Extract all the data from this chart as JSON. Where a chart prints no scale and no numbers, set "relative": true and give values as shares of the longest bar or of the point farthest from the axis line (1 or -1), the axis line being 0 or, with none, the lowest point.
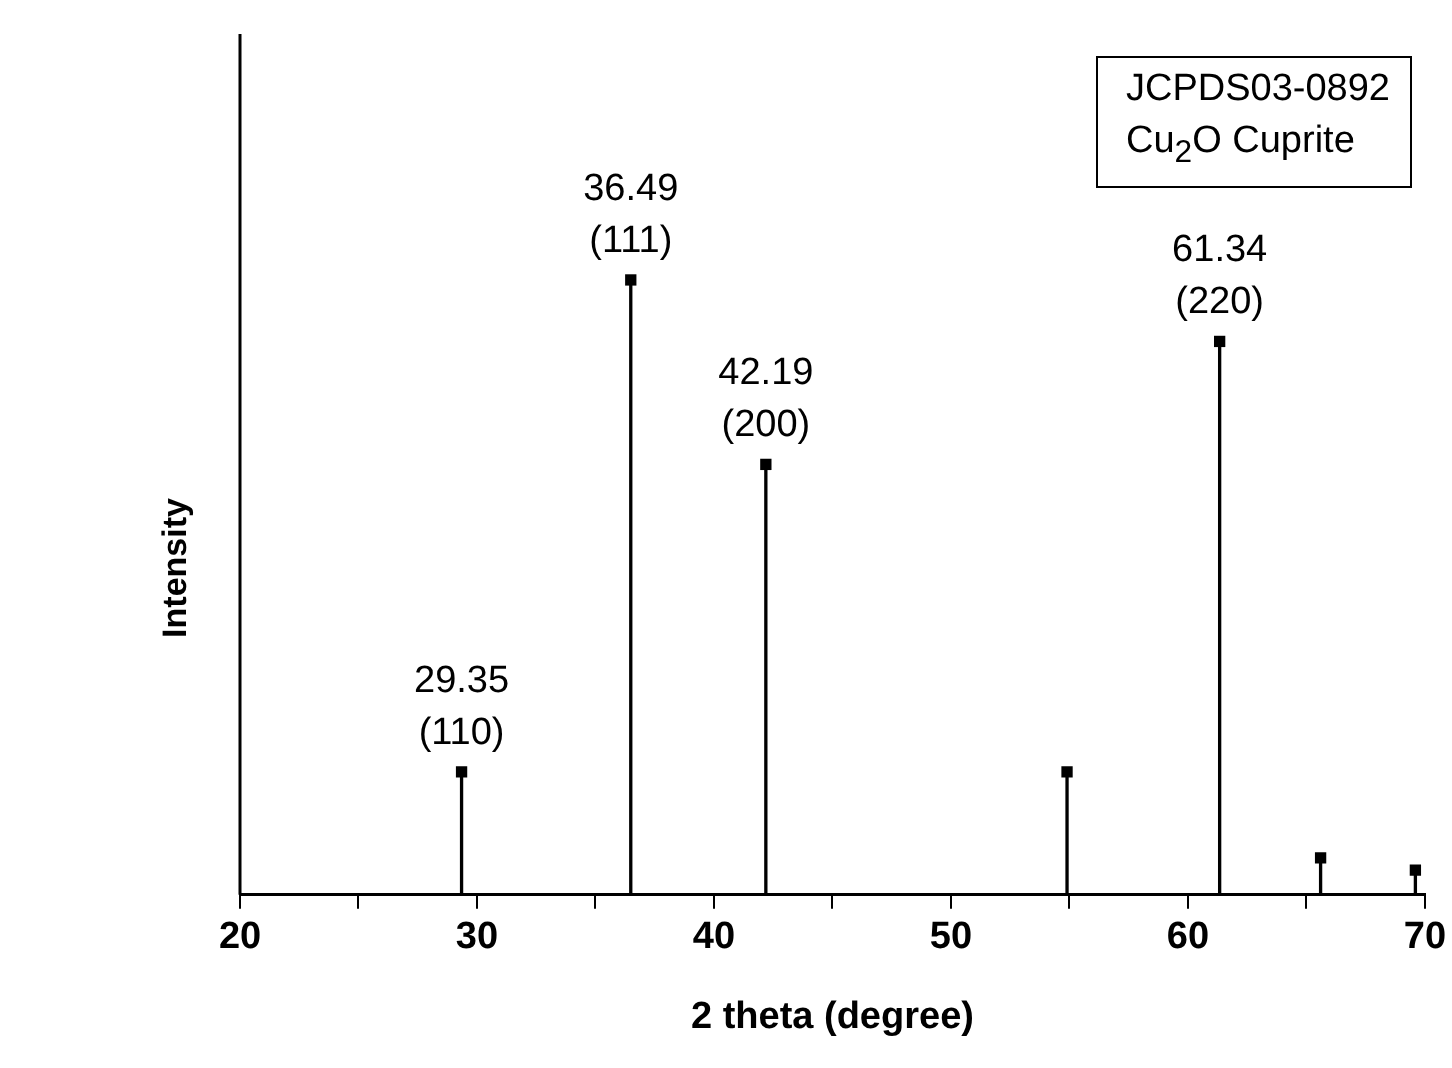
{
  "chart_data": {
    "type": "lollipop",
    "xlabel": "2 theta (degree)",
    "ylabel": "Intensity",
    "relative": true,
    "marker": "square",
    "tick_labels": "x",
    "grid": false,
    "legend": false,
    "xlim": [
      20,
      70
    ],
    "xticks": [
      20,
      {
        "value": 25,
        "label": null
      },
      30,
      {
        "value": 35,
        "label": null
      },
      40,
      {
        "value": 45,
        "label": null
      },
      50,
      {
        "value": 55,
        "label": null
      },
      60,
      {
        "value": 65,
        "label": null
      },
      70
    ],
    "series": [
      {
        "color": "#000000",
        "x": [
          29.35,
          36.49,
          42.19,
          54.9,
          61.34,
          65.6,
          69.6
        ],
        "values": [
          0.2,
          1,
          0.7,
          0.2,
          0.9,
          0.06,
          0.04
        ]
      }
    ],
    "annotations": [
      {
        "text": "29.35\n(110)",
        "x": 29.35,
        "y": 0.2
      },
      {
        "text": "36.49\n(111)",
        "x": 36.49,
        "y": 1
      },
      {
        "text": "42.19\n(200)",
        "x": 42.19,
        "y": 0.7
      },
      {
        "text": "61.34\n(220)",
        "x": 61.34,
        "y": 0.9
      },
      "JCPDS03-0892\nCu$_{2}$O Cuprite"
    ]
  }
}
